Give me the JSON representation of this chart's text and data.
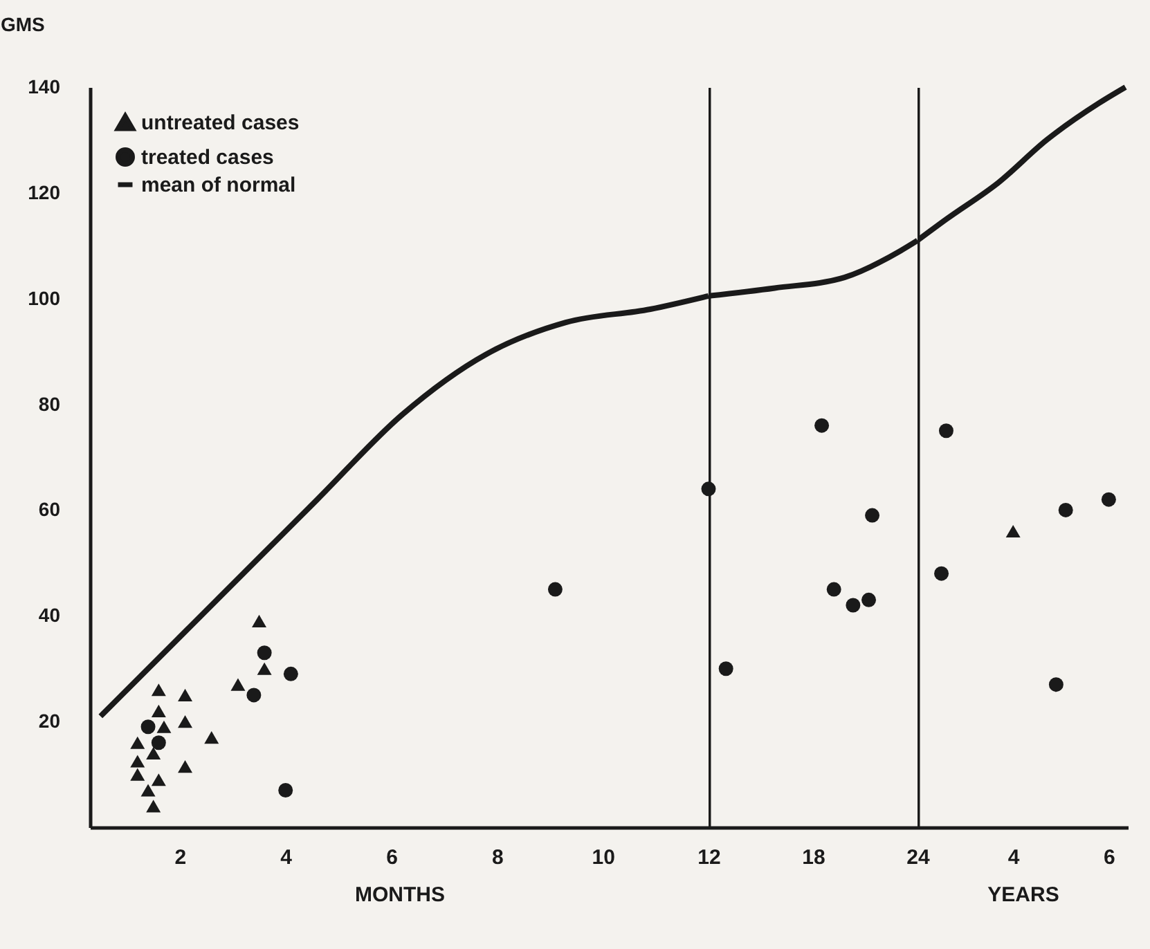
{
  "chart_data": [
    {
      "type": "scatter",
      "xlabel": "MONTHS",
      "ylabel": "GMS",
      "xlim": [
        0.3,
        12
      ],
      "ylim": [
        0,
        140
      ],
      "xticks": [
        2,
        4,
        6,
        8,
        10,
        12
      ],
      "yticks": [
        20,
        40,
        60,
        80,
        100,
        120,
        140
      ],
      "grid": false,
      "legend": "top left",
      "series": [
        {
          "name": "untreated cases",
          "marker": "triangle",
          "color": "#1a1a1a",
          "x": [
            3.5,
            3.6,
            3.1,
            1.6,
            2.1,
            1.6,
            2.1,
            1.7,
            2.6,
            1.2,
            1.5,
            1.2,
            2.1,
            1.2,
            1.6,
            1.4,
            1.5
          ],
          "values": [
            39,
            30,
            27,
            26,
            25,
            22,
            20,
            19,
            17,
            16,
            14,
            12.5,
            11.5,
            10,
            9,
            7,
            4
          ]
        },
        {
          "name": "treated cases",
          "marker": "circle",
          "color": "#1a1a1a",
          "x": [
            3.6,
            4.1,
            3.4,
            1.4,
            1.6,
            4.0,
            9.1,
            12
          ],
          "values": [
            33,
            29,
            25,
            19,
            16,
            7,
            45,
            64
          ]
        },
        {
          "name": "mean of normal",
          "type": "line",
          "marker": "none",
          "line_style": "solid",
          "color": "#1a1a1a",
          "x": [
            0.5,
            2.5,
            4.6,
            6.2,
            7.8,
            9.3,
            10.9,
            12
          ],
          "values": [
            21,
            41,
            62,
            78,
            89.5,
            95.5,
            98,
            100.5
          ]
        }
      ]
    },
    {
      "type": "scatter",
      "xlim": [
        12,
        24
      ],
      "ylim": [
        0,
        140
      ],
      "xticks": [
        18,
        24
      ],
      "yticks": [
        20,
        40,
        60,
        80,
        100,
        120,
        140
      ],
      "grid": false,
      "tick_labels": "x",
      "series": [
        {
          "marker": "circle",
          "color": "#1a1a1a",
          "x": [
            13.0,
            18.5,
            21.4,
            19.2,
            20.3,
            21.2
          ],
          "values": [
            30,
            76,
            59,
            45,
            42,
            43
          ]
        },
        {
          "type": "line",
          "marker": "none",
          "line_style": "solid",
          "color": "#1a1a1a",
          "x": [
            12,
            15.8,
            19.8,
            23,
            24
          ],
          "values": [
            100.5,
            102,
            104,
            109,
            111
          ]
        }
      ]
    },
    {
      "type": "scatter",
      "xlabel": "YEARS",
      "xlim": [
        2,
        6.4
      ],
      "ylim": [
        0,
        140
      ],
      "xticks": [
        4,
        6
      ],
      "yticks": [
        20,
        40,
        60,
        80,
        100,
        120,
        140
      ],
      "grid": false,
      "tick_labels": "x",
      "series": [
        {
          "marker": "triangle",
          "color": "#1a1a1a",
          "x": [
            4.0
          ],
          "values": [
            56
          ]
        },
        {
          "marker": "circle",
          "color": "#1a1a1a",
          "x": [
            2.6,
            2.5,
            5.1,
            6.0,
            4.9
          ],
          "values": [
            75,
            48,
            60,
            62,
            27
          ]
        },
        {
          "type": "line",
          "marker": "none",
          "line_style": "solid",
          "color": "#1a1a1a",
          "x": [
            2,
            2.6,
            3.7,
            4.7,
            5.8,
            6.35
          ],
          "values": [
            111,
            115,
            122,
            130,
            137,
            140
          ]
        }
      ]
    }
  ]
}
